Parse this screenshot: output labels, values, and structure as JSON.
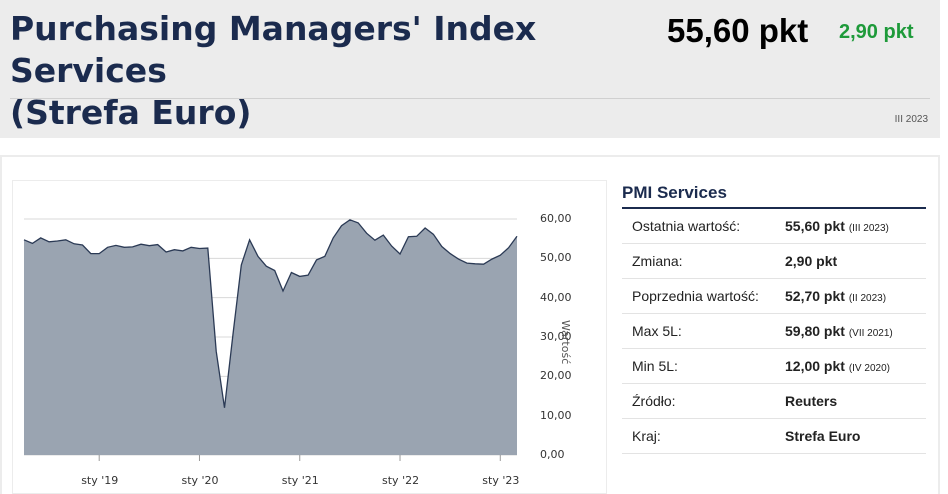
{
  "header": {
    "title_line1": "Purchasing Managers' Index Services",
    "title_line2": "(Strefa Euro)",
    "value": "55,60 pkt",
    "change": "2,90 pkt",
    "period": "III 2023"
  },
  "info": {
    "title": "PMI Services",
    "rows": [
      {
        "label": "Ostatnia wartość:",
        "value": "55,60 pkt",
        "note": "(III 2023)"
      },
      {
        "label": "Zmiana:",
        "value": "2,90 pkt",
        "note": ""
      },
      {
        "label": "Poprzednia wartość:",
        "value": "52,70 pkt",
        "note": "(II 2023)"
      },
      {
        "label": "Max 5L:",
        "value": "59,80 pkt",
        "note": "(VII 2021)"
      },
      {
        "label": "Min 5L:",
        "value": "12,00 pkt",
        "note": "(IV 2020)"
      },
      {
        "label": "Źródło:",
        "value": "Reuters",
        "note": ""
      },
      {
        "label": "Kraj:",
        "value": "Strefa Euro",
        "note": ""
      }
    ]
  },
  "chart_data": {
    "type": "area",
    "ylabel": "Wartość",
    "ylim": [
      0,
      60
    ],
    "y_ticks": [
      "60,00",
      "50,00",
      "40,00",
      "30,00",
      "20,00",
      "10,00",
      "0,00"
    ],
    "x_ticks": [
      "sty '19",
      "sty '20",
      "sty '21",
      "sty '22",
      "sty '23"
    ],
    "grid": true,
    "colors": {
      "fill": "#9aa4b1",
      "line": "#2b3a55"
    },
    "series": [
      {
        "x": [
          "2018-04",
          "2018-05",
          "2018-06",
          "2018-07",
          "2018-08",
          "2018-09",
          "2018-10",
          "2018-11",
          "2018-12",
          "2019-01",
          "2019-02",
          "2019-03",
          "2019-04",
          "2019-05",
          "2019-06",
          "2019-07",
          "2019-08",
          "2019-09",
          "2019-10",
          "2019-11",
          "2019-12",
          "2020-01",
          "2020-02",
          "2020-03",
          "2020-04",
          "2020-05",
          "2020-06",
          "2020-07",
          "2020-08",
          "2020-09",
          "2020-10",
          "2020-11",
          "2020-12",
          "2021-01",
          "2021-02",
          "2021-03",
          "2021-04",
          "2021-05",
          "2021-06",
          "2021-07",
          "2021-08",
          "2021-09",
          "2021-10",
          "2021-11",
          "2021-12",
          "2022-01",
          "2022-02",
          "2022-03",
          "2022-04",
          "2022-05",
          "2022-06",
          "2022-07",
          "2022-08",
          "2022-09",
          "2022-10",
          "2022-11",
          "2022-12",
          "2023-01",
          "2023-02",
          "2023-03"
        ],
        "values": [
          54.7,
          53.8,
          55.2,
          54.2,
          54.4,
          54.7,
          53.7,
          53.4,
          51.2,
          51.2,
          52.8,
          53.3,
          52.8,
          52.9,
          53.6,
          53.2,
          53.5,
          51.6,
          52.2,
          51.9,
          52.8,
          52.5,
          52.6,
          26.4,
          12.0,
          30.5,
          48.3,
          54.7,
          50.5,
          48.0,
          46.9,
          41.7,
          46.4,
          45.4,
          45.7,
          49.6,
          50.5,
          55.2,
          58.3,
          59.8,
          59.0,
          56.4,
          54.6,
          55.9,
          53.1,
          51.1,
          55.5,
          55.6,
          57.7,
          56.1,
          53.0,
          51.2,
          49.8,
          48.8,
          48.6,
          48.5,
          49.8,
          50.8,
          52.7,
          55.6
        ]
      }
    ]
  }
}
